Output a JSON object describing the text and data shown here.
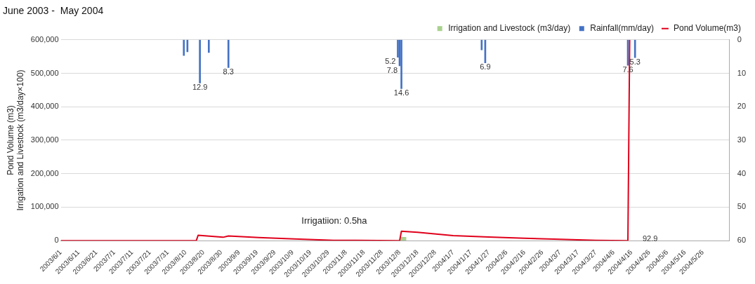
{
  "chart_data": {
    "type": "bar",
    "title": "June 2003 -  May 2004",
    "ylabel": "Pond Volume (m3)\nIrrigation and Livestock (m3/day×100)",
    "annotations": [
      "Irrigatiion: 0.5ha",
      "92.9"
    ],
    "xlim": [
      "2003-06-01",
      "2004-06-10"
    ],
    "xticks": [
      {
        "value": "2003-06-01",
        "label": "2003/6/1"
      },
      {
        "value": "2003-06-11",
        "label": "2003/6/11"
      },
      {
        "value": "2003-06-21",
        "label": "2003/6/21"
      },
      {
        "value": "2003-07-01",
        "label": "2003/7/1"
      },
      {
        "value": "2003-07-11",
        "label": "2003/7/11"
      },
      {
        "value": "2003-07-21",
        "label": "2003/7/21"
      },
      {
        "value": "2003-07-31",
        "label": "2003/7/31"
      },
      {
        "value": "2003-08-10",
        "label": "2003/8/10"
      },
      {
        "value": "2003-08-20",
        "label": "2003/8/20"
      },
      {
        "value": "2003-08-30",
        "label": "2003/8/30"
      },
      {
        "value": "2003-09-09",
        "label": "2003/9/9"
      },
      {
        "value": "2003-09-19",
        "label": "2003/9/19"
      },
      {
        "value": "2003-09-29",
        "label": "2003/9/29"
      },
      {
        "value": "2003-10-09",
        "label": "2003/10/9"
      },
      {
        "value": "2003-10-19",
        "label": "2003/10/19"
      },
      {
        "value": "2003-10-29",
        "label": "2003/10/29"
      },
      {
        "value": "2003-11-08",
        "label": "2003/11/8"
      },
      {
        "value": "2003-11-18",
        "label": "2003/11/18"
      },
      {
        "value": "2003-11-28",
        "label": "2003/11/28"
      },
      {
        "value": "2003-12-08",
        "label": "2003/12/8"
      },
      {
        "value": "2003-12-18",
        "label": "2003/12/18"
      },
      {
        "value": "2003-12-28",
        "label": "2003/12/28"
      },
      {
        "value": "2004-01-07",
        "label": "2004/1/7"
      },
      {
        "value": "2004-01-17",
        "label": "2004/1/17"
      },
      {
        "value": "2004-01-27",
        "label": "2004/1/27"
      },
      {
        "value": "2004-02-06",
        "label": "2004/2/6"
      },
      {
        "value": "2004-02-16",
        "label": "2004/2/16"
      },
      {
        "value": "2004-02-26",
        "label": "2004/2/26"
      },
      {
        "value": "2004-03-07",
        "label": "2004/3/7"
      },
      {
        "value": "2004-03-17",
        "label": "2004/3/17"
      },
      {
        "value": "2004-03-27",
        "label": "2004/3/27"
      },
      {
        "value": "2004-04-06",
        "label": "2004/4/6"
      },
      {
        "value": "2004-04-16",
        "label": "2004/4/16"
      },
      {
        "value": "2004-04-26",
        "label": "2004/4/26"
      },
      {
        "value": "2004-05-06",
        "label": "2004/5/6"
      },
      {
        "value": "2004-05-16",
        "label": "2004/5/16"
      },
      {
        "value": "2004-05-26",
        "label": "2004/5/26"
      }
    ],
    "ylim": [
      0,
      600000
    ],
    "yticks": [
      {
        "value": 0,
        "label": "0"
      },
      {
        "value": 100000,
        "label": "100,000"
      },
      {
        "value": 200000,
        "label": "200,000"
      },
      {
        "value": 300000,
        "label": "300,000"
      },
      {
        "value": 400000,
        "label": "400,000"
      },
      {
        "value": 500000,
        "label": "500,000"
      },
      {
        "value": 600000,
        "label": "600,000"
      }
    ],
    "y2lim": [
      60,
      0
    ],
    "y2ticks": [
      0,
      10,
      20,
      30,
      40,
      50,
      60
    ],
    "grid": "y",
    "legend": "top right",
    "series": [
      {
        "name": "Irrigation and Livestock (m3/day)",
        "color": "#a9d18e",
        "x": [
          "2003-12-10"
        ],
        "values": [
          10000
        ]
      },
      {
        "name": "Rainfall(mm/day)",
        "axis": "y2",
        "color": "#4472c4",
        "x": [
          "2003-08-09",
          "2003-08-11",
          "2003-08-18",
          "2003-08-23",
          "2003-09-03",
          "2003-12-07",
          "2003-12-08",
          "2003-12-09",
          "2004-01-23",
          "2004-01-25",
          "2004-04-14",
          "2004-04-15",
          "2004-04-18"
        ],
        "values": [
          4.7,
          3.6,
          12.9,
          3.8,
          8.3,
          5.2,
          7.8,
          14.6,
          3.0,
          6.9,
          7.6,
          null,
          5.3
        ],
        "value_labels": [
          null,
          null,
          "12.9",
          null,
          "8.3",
          "5.2",
          "7.8",
          "14.6",
          null,
          "6.9",
          "7.6",
          null,
          "5.3"
        ]
      },
      {
        "name": "Pond Volume(m3)",
        "type": "line",
        "color": "#e0001b",
        "x": [
          "2003-06-01",
          "2003-08-16",
          "2003-08-17",
          "2003-08-31",
          "2003-09-03",
          "2003-09-20",
          "2003-10-10",
          "2003-11-01",
          "2003-12-08",
          "2003-12-09",
          "2003-12-18",
          "2004-01-07",
          "2004-01-27",
          "2004-02-16",
          "2004-03-07",
          "2004-03-27",
          "2004-04-14",
          "2004-04-15"
        ],
        "values": [
          0,
          0,
          16000,
          10000,
          14000,
          9000,
          5000,
          1000,
          0,
          28000,
          25000,
          15000,
          11000,
          7000,
          4000,
          1000,
          0,
          600000
        ]
      }
    ]
  }
}
